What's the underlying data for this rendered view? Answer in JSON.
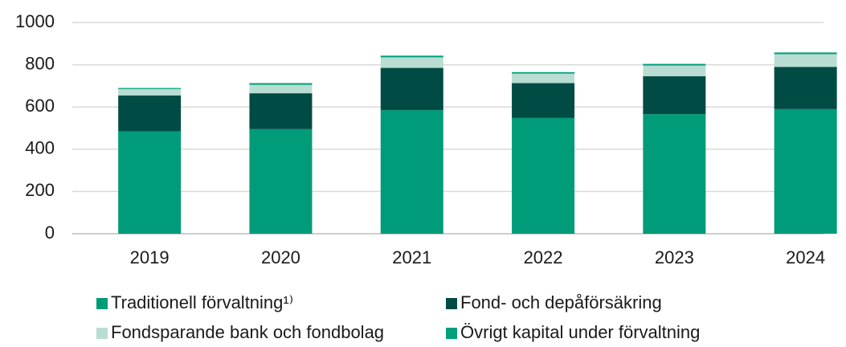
{
  "chart_data": {
    "type": "bar",
    "stacked": true,
    "categories": [
      "2019",
      "2020",
      "2021",
      "2022",
      "2023",
      "2024"
    ],
    "series": [
      {
        "name": "Traditionell förvaltning¹⁾",
        "color": "#009b78",
        "values": [
          485,
          495,
          585,
          548,
          566,
          590
        ]
      },
      {
        "name": "Fond- och depåförsäkring",
        "color": "#004c45",
        "values": [
          170,
          170,
          200,
          165,
          180,
          200
        ]
      },
      {
        "name": "Fondsparande bank och fondbolag",
        "color": "#b9ddd3",
        "values": [
          30,
          40,
          50,
          45,
          50,
          60
        ]
      },
      {
        "name": "Övrigt kapital under förvaltning",
        "color": "#00a07c",
        "values": [
          5,
          8,
          8,
          7,
          8,
          8
        ]
      }
    ],
    "ylim": [
      0,
      1000
    ],
    "yticks": [
      0,
      200,
      400,
      600,
      800,
      1000
    ],
    "grid": true
  }
}
